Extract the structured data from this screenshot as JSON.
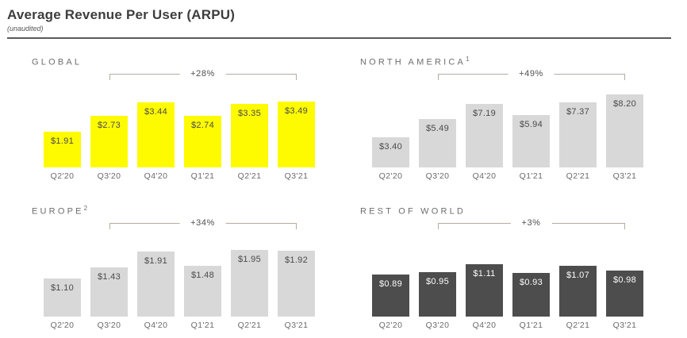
{
  "header": {
    "title": "Average Revenue Per User (ARPU)",
    "subtitle": "(unaudited)"
  },
  "colors": {
    "accent_yellow": "#FEFB00",
    "light_gray_bar": "#D8D8D8",
    "dark_gray_bar": "#4D4D4D",
    "bracket_line": "#B3AD9E",
    "dark_text": "#4A4A4A",
    "white_text": "#FDFDFD"
  },
  "chart_data": [
    {
      "type": "bar",
      "title": "GLOBAL",
      "title_sup": "",
      "categories": [
        "Q2'20",
        "Q3'20",
        "Q4'20",
        "Q1'21",
        "Q2'21",
        "Q3'21"
      ],
      "values": [
        1.91,
        2.73,
        3.44,
        2.74,
        3.35,
        3.49
      ],
      "value_labels": [
        "$1.91",
        "$2.73",
        "$3.44",
        "$2.74",
        "$3.35",
        "$3.49"
      ],
      "growth_annotation": {
        "label": "+28%",
        "from_category": "Q3'20",
        "to_category": "Q3'21"
      },
      "xlabel": "",
      "ylabel": "",
      "ylim": [
        0,
        4
      ],
      "grid": false,
      "bar_color": "#FEFB00",
      "value_label_color": "#4A4A4A"
    },
    {
      "type": "bar",
      "title": "NORTH AMERICA",
      "title_sup": "1",
      "categories": [
        "Q2'20",
        "Q3'20",
        "Q4'20",
        "Q1'21",
        "Q2'21",
        "Q3'21"
      ],
      "values": [
        3.4,
        5.49,
        7.19,
        5.94,
        7.37,
        8.2
      ],
      "value_labels": [
        "$3.40",
        "$5.49",
        "$7.19",
        "$5.94",
        "$7.37",
        "$8.20"
      ],
      "growth_annotation": {
        "label": "+49%",
        "from_category": "Q3'20",
        "to_category": "Q3'21"
      },
      "xlabel": "",
      "ylabel": "",
      "ylim": [
        0,
        8.5
      ],
      "grid": false,
      "bar_color": "#D8D8D8",
      "value_label_color": "#4A4A4A"
    },
    {
      "type": "bar",
      "title": "EUROPE",
      "title_sup": "2",
      "categories": [
        "Q2'20",
        "Q3'20",
        "Q4'20",
        "Q1'21",
        "Q2'21",
        "Q3'21"
      ],
      "values": [
        1.1,
        1.43,
        1.91,
        1.48,
        1.95,
        1.92
      ],
      "value_labels": [
        "$1.10",
        "$1.43",
        "$1.91",
        "$1.48",
        "$1.95",
        "$1.92"
      ],
      "growth_annotation": {
        "label": "+34%",
        "from_category": "Q3'20",
        "to_category": "Q3'21"
      },
      "xlabel": "",
      "ylabel": "",
      "ylim": [
        0,
        2.2
      ],
      "grid": false,
      "bar_color": "#D8D8D8",
      "value_label_color": "#4A4A4A"
    },
    {
      "type": "bar",
      "title": "REST OF WORLD",
      "title_sup": "",
      "categories": [
        "Q2'20",
        "Q3'20",
        "Q4'20",
        "Q1'21",
        "Q2'21",
        "Q3'21"
      ],
      "values": [
        0.89,
        0.95,
        1.11,
        0.93,
        1.07,
        0.98
      ],
      "value_labels": [
        "$0.89",
        "$0.95",
        "$1.11",
        "$0.93",
        "$1.07",
        "$0.98"
      ],
      "growth_annotation": {
        "label": "+3%",
        "from_category": "Q3'20",
        "to_category": "Q3'21"
      },
      "xlabel": "",
      "ylabel": "",
      "ylim": [
        0,
        1.6
      ],
      "grid": false,
      "bar_color": "#4D4D4D",
      "value_label_color": "#FDFDFD"
    }
  ]
}
